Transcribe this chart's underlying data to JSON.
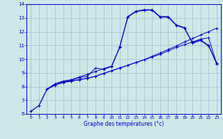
{
  "xlabel": "Graphe des températures (°c)",
  "bg_color": "#cce8e8",
  "grid_color": "#aabbcc",
  "line_color": "#0000cc",
  "xlim": [
    -0.5,
    23.5
  ],
  "ylim": [
    6,
    14
  ],
  "xticks": [
    0,
    1,
    2,
    3,
    4,
    5,
    6,
    7,
    8,
    9,
    10,
    11,
    12,
    13,
    14,
    15,
    16,
    17,
    18,
    19,
    20,
    21,
    22,
    23
  ],
  "yticks": [
    6,
    7,
    8,
    9,
    10,
    11,
    12,
    13,
    14
  ],
  "series": [
    {
      "x": [
        0,
        1,
        2,
        3,
        4,
        5,
        6,
        7,
        8,
        9,
        10,
        11,
        12,
        13,
        14,
        15,
        16,
        17,
        18,
        19,
        20,
        21,
        22,
        23
      ],
      "y": [
        6.2,
        6.6,
        7.8,
        8.2,
        8.4,
        8.5,
        8.7,
        8.9,
        9.1,
        9.3,
        9.5,
        10.9,
        13.1,
        13.5,
        13.6,
        13.6,
        13.1,
        13.1,
        12.5,
        12.3,
        11.2,
        11.4,
        11.0,
        9.7
      ]
    },
    {
      "x": [
        0,
        1,
        2,
        3,
        4,
        5,
        6,
        7,
        8,
        9,
        10,
        11,
        12,
        13,
        14,
        15,
        16,
        17,
        18,
        19,
        20,
        21,
        22,
        23
      ],
      "y": [
        6.2,
        6.6,
        7.8,
        8.2,
        8.35,
        8.45,
        8.65,
        8.75,
        9.35,
        9.25,
        9.45,
        10.85,
        13.05,
        13.45,
        13.55,
        13.55,
        13.05,
        13.05,
        12.45,
        12.25,
        11.15,
        11.35,
        10.95,
        9.65
      ]
    },
    {
      "x": [
        2,
        3,
        4,
        5,
        6,
        7,
        8,
        9,
        10,
        11,
        12,
        13,
        14,
        15,
        16,
        17,
        18,
        19,
        20,
        21,
        22,
        23
      ],
      "y": [
        7.8,
        8.1,
        8.3,
        8.4,
        8.5,
        8.6,
        8.75,
        8.95,
        9.15,
        9.35,
        9.55,
        9.75,
        9.95,
        10.15,
        10.35,
        10.6,
        10.85,
        11.05,
        11.25,
        11.45,
        11.55,
        9.65
      ]
    },
    {
      "x": [
        2,
        3,
        4,
        5,
        6,
        7,
        8,
        9,
        10,
        11,
        12,
        13,
        14,
        15,
        16,
        17,
        18,
        19,
        20,
        21,
        22,
        23
      ],
      "y": [
        7.8,
        8.1,
        8.3,
        8.4,
        8.5,
        8.6,
        8.75,
        8.95,
        9.15,
        9.35,
        9.55,
        9.75,
        9.95,
        10.2,
        10.45,
        10.7,
        10.95,
        11.25,
        11.5,
        11.75,
        12.0,
        12.25
      ]
    }
  ]
}
